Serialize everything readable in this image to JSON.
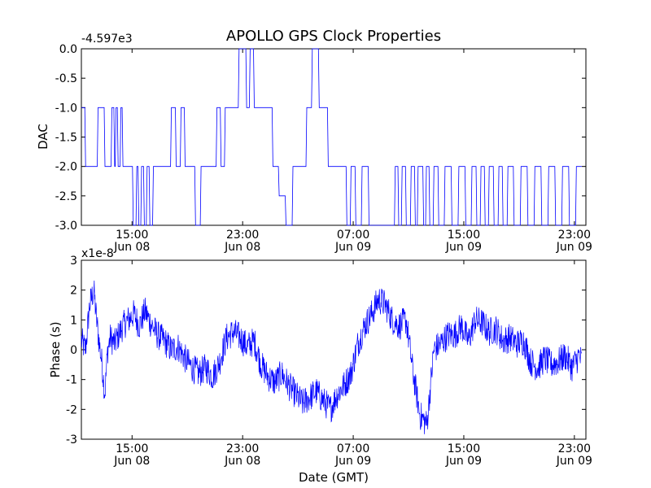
{
  "chart_data": [
    {
      "type": "line",
      "title": "APOLLO GPS Clock Properties",
      "ylabel": "DAC",
      "xlabel": "",
      "offset_label": "-4.597e3",
      "ylim": [
        -3.0,
        0.0
      ],
      "x_range": [
        "2009-06-08T11:20",
        "2009-06-09T23:50"
      ],
      "x_ticks": [
        {
          "time": "15:00",
          "date": "Jun 08"
        },
        {
          "time": "23:00",
          "date": "Jun 08"
        },
        {
          "time": "07:00",
          "date": "Jun 09"
        },
        {
          "time": "15:00",
          "date": "Jun 09"
        },
        {
          "time": "23:00",
          "date": "Jun 09"
        }
      ],
      "y_ticks": [
        "0.0",
        "-0.5",
        "-1.0",
        "-1.5",
        "-2.0",
        "-2.5",
        "-3.0"
      ],
      "grid": false,
      "color": "#0000ff",
      "series": [
        {
          "x_hours": [
            0.0,
            0.5,
            1.0,
            1.3,
            2.0,
            2.3,
            2.4,
            2.5,
            2.7,
            2.9,
            3.0,
            3.5,
            3.9,
            4.0,
            4.2,
            4.4,
            4.6,
            4.8,
            5.0,
            5.3,
            5.6,
            6.0,
            6.3,
            6.6,
            7.0,
            7.3,
            7.6,
            8.0,
            8.4,
            8.8,
            9.0,
            9.3,
            9.6,
            9.9,
            10.2,
            10.5,
            10.8,
            11.0,
            11.2,
            11.5,
            11.8,
            12.0,
            12.3,
            12.6,
            13.0,
            13.3,
            13.6,
            14.0,
            14.5,
            15.0,
            15.5,
            16.0,
            16.5,
            16.8,
            17.0,
            17.3,
            17.6,
            18.0,
            18.5,
            19.0,
            19.3,
            19.6,
            20.0,
            20.5,
            21.0,
            21.5,
            22.0,
            22.5,
            22.8,
            23.0,
            23.3,
            23.6,
            24.0,
            24.2,
            24.4,
            24.6,
            24.8,
            25.0,
            25.3,
            25.6,
            26.0,
            26.5,
            27.0,
            27.5,
            28.0,
            28.4,
            28.7,
            29.0,
            29.3,
            29.6,
            30.0,
            30.3,
            30.6,
            31.0,
            31.5,
            32.0,
            32.5,
            33.0,
            33.5,
            34.0,
            34.5,
            35.0,
            35.5,
            36.0,
            36.2
          ],
          "values": [
            -1.0,
            -2.0,
            -2.0,
            -1.0,
            -2.0,
            -1.0,
            -2.0,
            -1.0,
            -2.0,
            -1.0,
            -2.0,
            -2.0,
            -3.0,
            -2.0,
            -3.0,
            -2.0,
            -3.0,
            -2.0,
            -3.0,
            -2.0,
            -2.0,
            -2.0,
            -2.0,
            -1.0,
            -2.0,
            -1.0,
            -2.0,
            -2.0,
            -3.0,
            -2.0,
            -2.0,
            -2.0,
            -2.0,
            -1.0,
            -2.0,
            -1.0,
            -1.0,
            -1.0,
            -1.0,
            0.0,
            0.0,
            -1.0,
            0.0,
            -1.0,
            -1.0,
            -1.0,
            -1.0,
            -2.0,
            -2.5,
            -3.0,
            -2.0,
            -2.0,
            -1.0,
            0.0,
            0.0,
            -1.0,
            -1.0,
            -2.0,
            -2.0,
            -2.0,
            -3.0,
            -2.0,
            -3.0,
            -2.0,
            -3.0,
            -3.0,
            -3.0,
            -3.0,
            -2.0,
            -3.0,
            -2.0,
            -3.0,
            -2.0,
            -3.0,
            -2.0,
            -2.0,
            -3.0,
            -2.0,
            -3.0,
            -2.0,
            -3.0,
            -2.0,
            -3.0,
            -2.0,
            -3.0,
            -2.0,
            -3.0,
            -2.0,
            -3.0,
            -2.0,
            -3.0,
            -2.0,
            -3.0,
            -2.0,
            -3.0,
            -2.0,
            -3.0,
            -2.0,
            -3.0,
            -2.0,
            -3.0,
            -2.0,
            -3.0,
            -2.0,
            -2.0
          ]
        }
      ]
    },
    {
      "type": "line",
      "title": "",
      "ylabel": "Phase (s)",
      "xlabel": "Date (GMT)",
      "offset_label": "x1e-8",
      "ylim": [
        -3,
        3
      ],
      "x_range": [
        "2009-06-08T11:20",
        "2009-06-09T23:50"
      ],
      "x_ticks": [
        {
          "time": "15:00",
          "date": "Jun 08"
        },
        {
          "time": "23:00",
          "date": "Jun 08"
        },
        {
          "time": "07:00",
          "date": "Jun 09"
        },
        {
          "time": "15:00",
          "date": "Jun 09"
        },
        {
          "time": "23:00",
          "date": "Jun 09"
        }
      ],
      "y_ticks": [
        "3",
        "2",
        "1",
        "0",
        "-1",
        "-2",
        "-3"
      ],
      "grid": false,
      "color": "#0000ff",
      "series": [
        {
          "x_hours": [
            0.0,
            0.3,
            0.6,
            0.9,
            1.1,
            1.3,
            1.5,
            1.7,
            1.9,
            2.1,
            2.4,
            2.7,
            3.0,
            3.4,
            3.8,
            4.2,
            4.6,
            5.0,
            5.5,
            6.0,
            6.5,
            7.0,
            7.5,
            8.0,
            8.5,
            9.0,
            9.5,
            10.0,
            10.5,
            11.0,
            11.5,
            12.0,
            12.5,
            13.0,
            13.5,
            14.0,
            14.5,
            15.0,
            15.5,
            16.0,
            16.5,
            17.0,
            17.5,
            18.0,
            18.5,
            19.0,
            19.5,
            20.0,
            20.5,
            21.0,
            21.5,
            22.0,
            22.5,
            23.0,
            23.5,
            24.0,
            24.5,
            25.0,
            25.5,
            26.0,
            26.5,
            27.0,
            27.5,
            28.0,
            28.5,
            29.0,
            29.5,
            30.0,
            30.5,
            31.0,
            31.5,
            32.0,
            32.5,
            33.0,
            33.5,
            34.0,
            34.5,
            35.0,
            35.5,
            36.0,
            36.2
          ],
          "values": [
            0.3,
            0.0,
            1.5,
            2.0,
            1.0,
            0.2,
            -0.5,
            -1.5,
            0.0,
            0.4,
            0.2,
            0.5,
            0.8,
            1.0,
            1.2,
            0.8,
            1.3,
            0.9,
            0.5,
            0.3,
            0.0,
            0.1,
            -0.3,
            -0.6,
            -0.8,
            -0.6,
            -0.9,
            -0.4,
            0.4,
            0.6,
            0.4,
            0.1,
            0.3,
            -0.5,
            -0.9,
            -1.1,
            -0.8,
            -1.2,
            -1.5,
            -1.8,
            -1.6,
            -1.4,
            -1.7,
            -2.0,
            -1.5,
            -1.2,
            -0.8,
            0.2,
            0.8,
            1.2,
            1.7,
            1.5,
            1.0,
            0.8,
            1.0,
            -0.8,
            -2.2,
            -2.5,
            0.0,
            0.2,
            0.5,
            0.5,
            0.8,
            0.3,
            1.0,
            0.9,
            0.6,
            0.7,
            0.3,
            0.4,
            0.2,
            0.3,
            -0.4,
            -0.6,
            -0.3,
            -0.5,
            -0.4,
            -0.2,
            -0.6,
            -0.2,
            -0.4
          ]
        }
      ]
    }
  ]
}
